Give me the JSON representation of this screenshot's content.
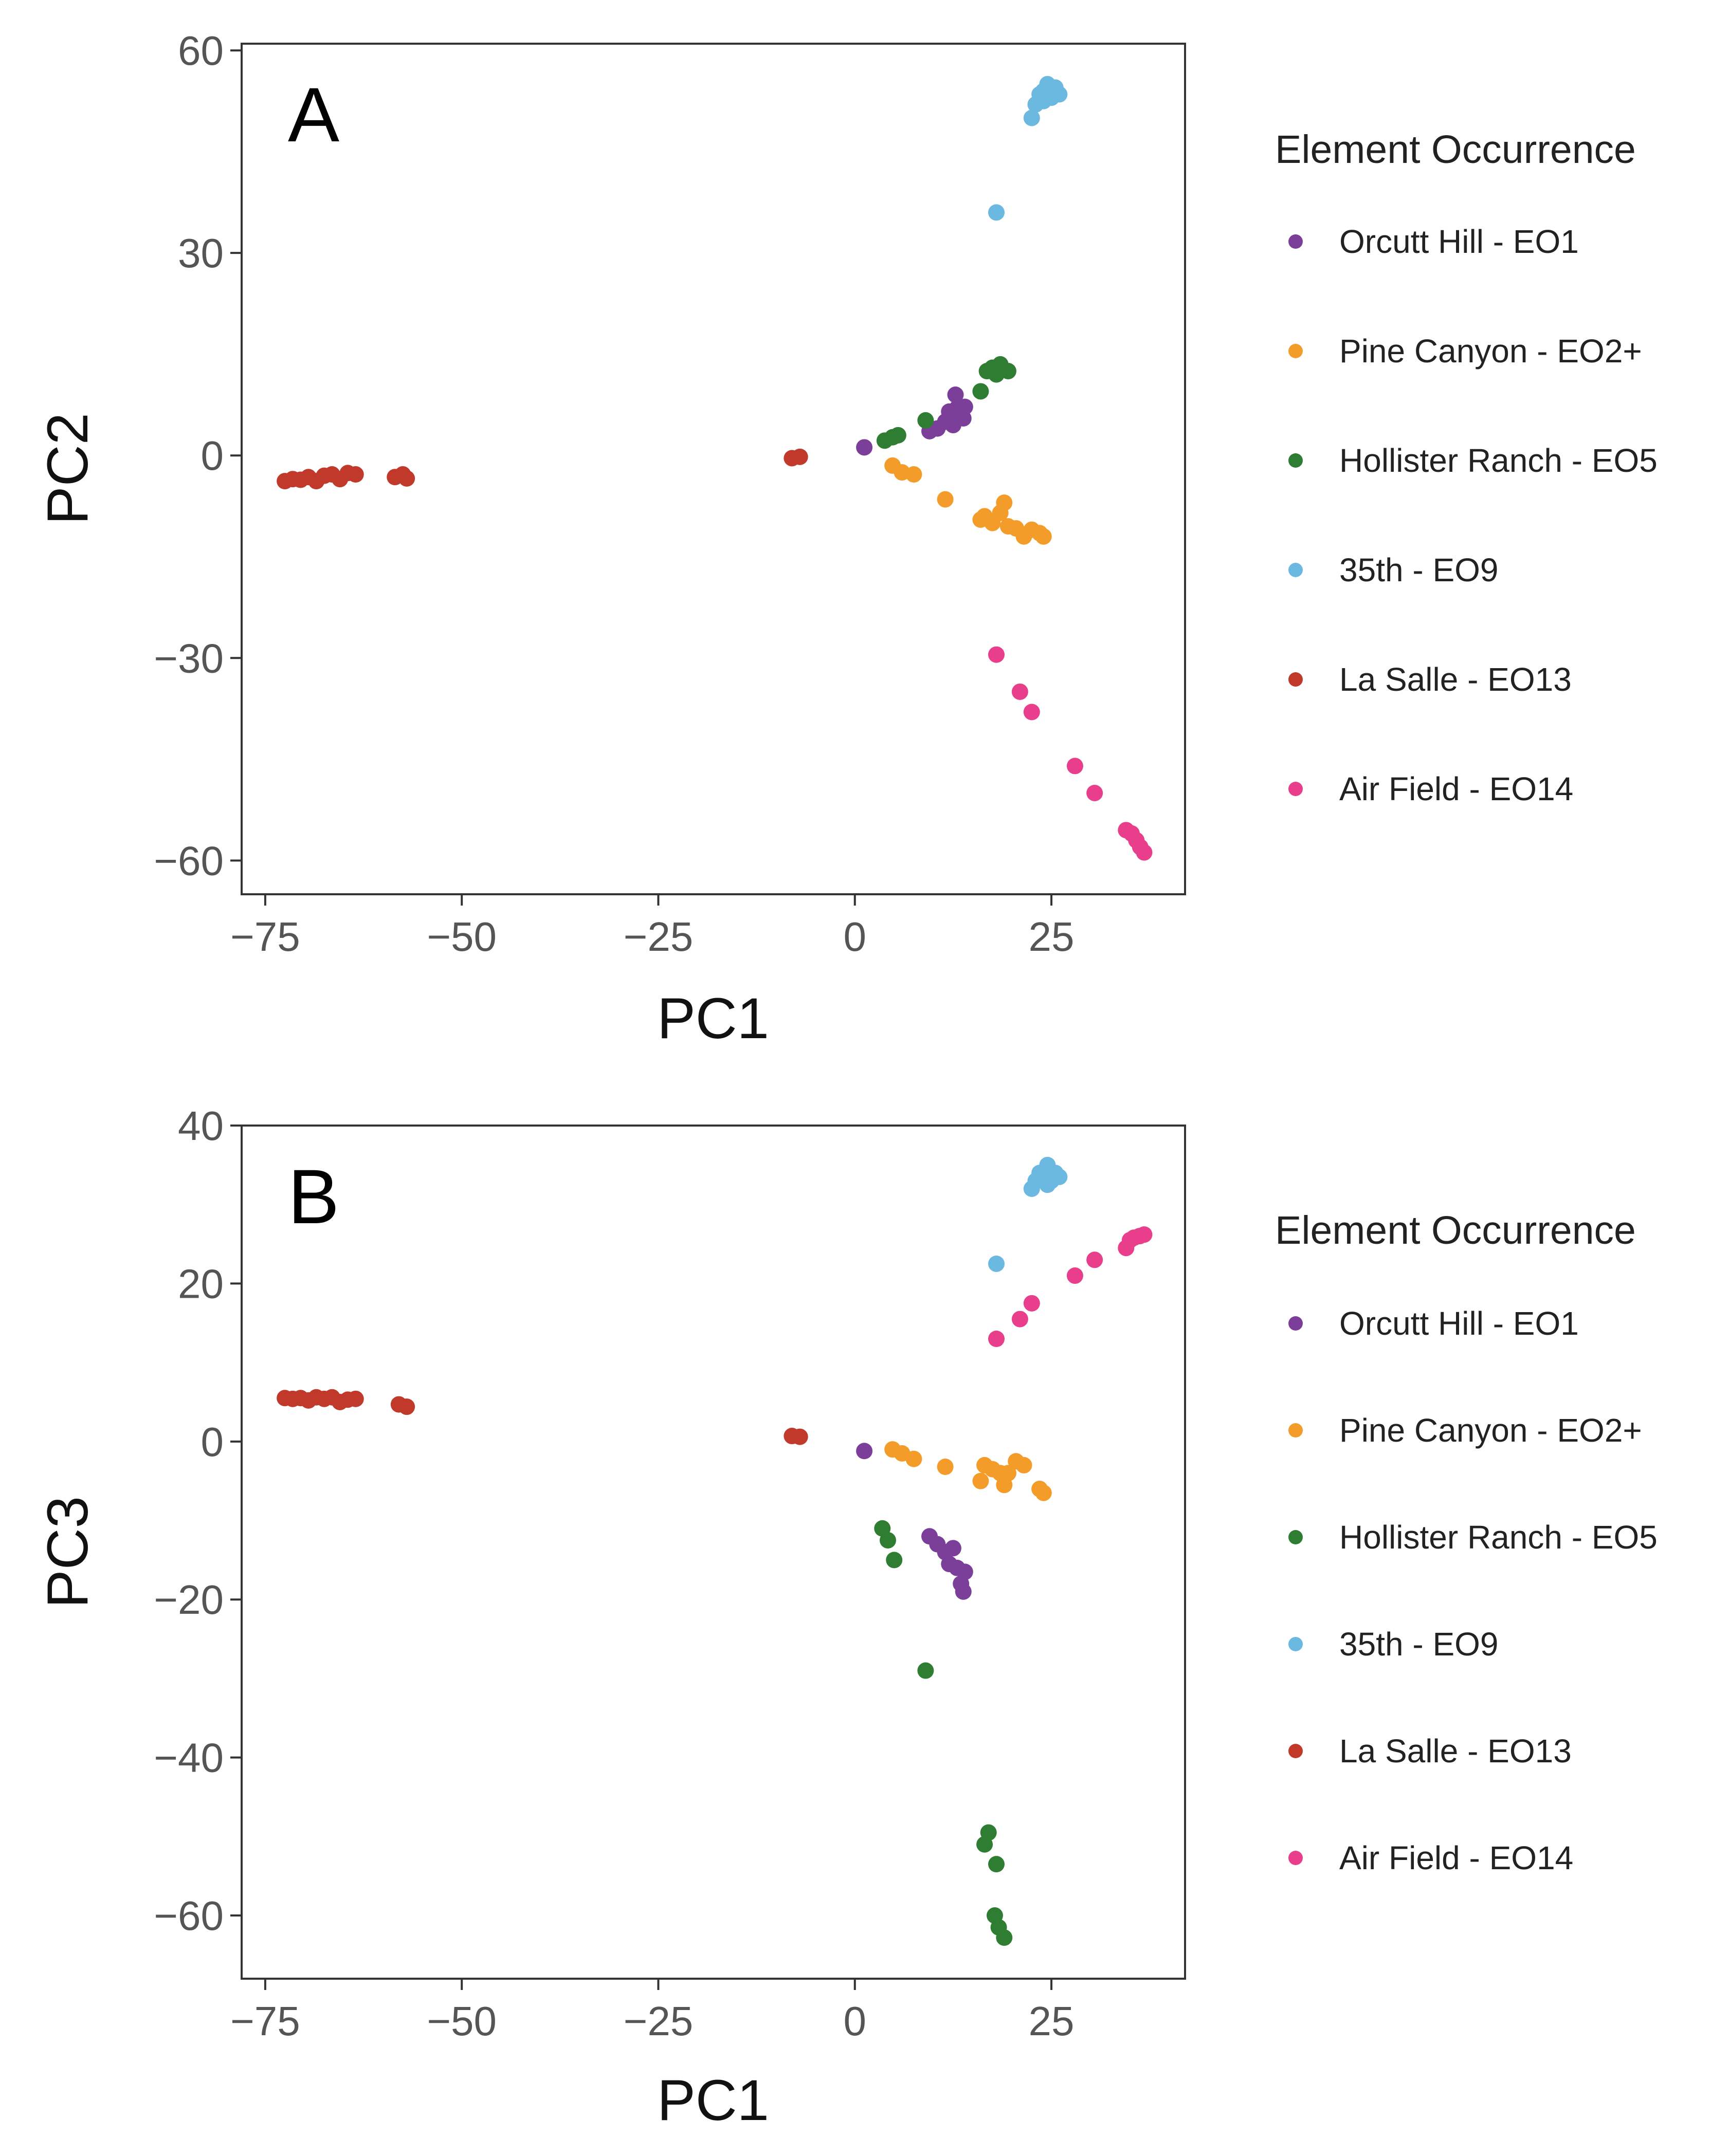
{
  "groups": [
    {
      "key": "eo1",
      "label": "Orcutt Hill - EO1",
      "color": "#7b3f99"
    },
    {
      "key": "eo2",
      "label": "Pine Canyon - EO2+",
      "color": "#f39c2a"
    },
    {
      "key": "eo5",
      "label": "Hollister Ranch - EO5",
      "color": "#2e7d32"
    },
    {
      "key": "eo9",
      "label": "35th - EO9",
      "color": "#6bb8e0"
    },
    {
      "key": "eo13",
      "label": "La Salle - EO13",
      "color": "#c0392b"
    },
    {
      "key": "eo14",
      "label": "Air Field - EO14",
      "color": "#e83e8c"
    }
  ],
  "chart_data": [
    {
      "type": "scatter",
      "panel": "A",
      "xlabel": "PC1",
      "ylabel": "PC2",
      "xlim": [
        -78,
        42
      ],
      "ylim": [
        -65,
        61
      ],
      "xticks": [
        -75,
        -50,
        -25,
        0,
        25
      ],
      "yticks": [
        60,
        30,
        0,
        -30,
        -60
      ],
      "legend_title": "Element Occurrence",
      "legend_position": "right",
      "series": [
        {
          "name": "Orcutt Hill - EO1",
          "points": [
            [
              1.2,
              1.2
            ],
            [
              9.5,
              3.6
            ],
            [
              10.5,
              4.0
            ],
            [
              11.5,
              5.0
            ],
            [
              12.0,
              6.5
            ],
            [
              12.5,
              4.5
            ],
            [
              12.8,
              9.0
            ],
            [
              13.0,
              7.0
            ],
            [
              13.5,
              6.0
            ],
            [
              14.0,
              7.2
            ],
            [
              13.8,
              5.5
            ]
          ]
        },
        {
          "name": "Pine Canyon - EO2+",
          "points": [
            [
              4.8,
              -1.5
            ],
            [
              6.0,
              -2.5
            ],
            [
              7.5,
              -2.8
            ],
            [
              11.5,
              -6.5
            ],
            [
              16.0,
              -9.5
            ],
            [
              16.5,
              -9.0
            ],
            [
              17.5,
              -10.0
            ],
            [
              18.5,
              -8.5
            ],
            [
              19.0,
              -7.0
            ],
            [
              19.5,
              -10.5
            ],
            [
              20.5,
              -10.8
            ],
            [
              21.5,
              -12.0
            ],
            [
              22.5,
              -11.0
            ],
            [
              23.5,
              -11.5
            ],
            [
              24.0,
              -12.0
            ]
          ]
        },
        {
          "name": "Hollister Ranch - EO5",
          "points": [
            [
              3.8,
              2.2
            ],
            [
              4.8,
              2.7
            ],
            [
              5.5,
              3.0
            ],
            [
              9.0,
              5.2
            ],
            [
              16.0,
              9.5
            ],
            [
              16.8,
              12.5
            ],
            [
              17.5,
              13.0
            ],
            [
              18.0,
              12.0
            ],
            [
              18.5,
              13.5
            ],
            [
              19.5,
              12.5
            ]
          ]
        },
        {
          "name": "35th - EO9",
          "points": [
            [
              18.0,
              36.0
            ],
            [
              22.5,
              50.0
            ],
            [
              23.0,
              52.0
            ],
            [
              23.5,
              53.5
            ],
            [
              24.0,
              52.5
            ],
            [
              24.5,
              55.0
            ],
            [
              25.0,
              53.0
            ],
            [
              25.5,
              54.5
            ],
            [
              26.0,
              53.5
            ],
            [
              24.0,
              54.0
            ]
          ]
        },
        {
          "name": "La Salle - EO13",
          "points": [
            [
              -72.5,
              -3.8
            ],
            [
              -71.5,
              -3.5
            ],
            [
              -70.5,
              -3.6
            ],
            [
              -69.5,
              -3.2
            ],
            [
              -68.5,
              -3.8
            ],
            [
              -67.5,
              -3.0
            ],
            [
              -66.5,
              -2.8
            ],
            [
              -65.5,
              -3.5
            ],
            [
              -64.5,
              -2.6
            ],
            [
              -63.5,
              -2.8
            ],
            [
              -58.5,
              -3.2
            ],
            [
              -57.5,
              -2.8
            ],
            [
              -57.0,
              -3.4
            ],
            [
              -8.0,
              -0.4
            ],
            [
              -7.0,
              -0.2
            ]
          ]
        },
        {
          "name": "Air Field - EO14",
          "points": [
            [
              18.0,
              -29.5
            ],
            [
              21.0,
              -35.0
            ],
            [
              22.5,
              -38.0
            ],
            [
              28.0,
              -46.0
            ],
            [
              30.5,
              -50.0
            ],
            [
              34.5,
              -55.5
            ],
            [
              35.2,
              -56.0
            ],
            [
              35.8,
              -57.0
            ],
            [
              36.3,
              -58.0
            ],
            [
              36.8,
              -58.8
            ]
          ]
        }
      ]
    },
    {
      "type": "scatter",
      "panel": "B",
      "xlabel": "PC1",
      "ylabel": "PC3",
      "xlim": [
        -78,
        42
      ],
      "ylim": [
        -68,
        40
      ],
      "xticks": [
        -75,
        -50,
        -25,
        0,
        25
      ],
      "yticks": [
        40,
        20,
        0,
        -20,
        -40,
        -60
      ],
      "legend_title": "Element Occurrence",
      "legend_position": "right",
      "series": [
        {
          "name": "Orcutt Hill - EO1",
          "points": [
            [
              1.2,
              -1.2
            ],
            [
              9.5,
              -12.0
            ],
            [
              10.5,
              -13.0
            ],
            [
              11.5,
              -14.0
            ],
            [
              12.0,
              -15.5
            ],
            [
              12.5,
              -13.5
            ],
            [
              13.0,
              -16.0
            ],
            [
              13.5,
              -18.0
            ],
            [
              13.8,
              -19.0
            ],
            [
              14.0,
              -16.5
            ]
          ]
        },
        {
          "name": "Pine Canyon - EO2+",
          "points": [
            [
              4.8,
              -1.0
            ],
            [
              6.0,
              -1.5
            ],
            [
              7.5,
              -2.2
            ],
            [
              11.5,
              -3.2
            ],
            [
              16.0,
              -5.0
            ],
            [
              16.5,
              -3.0
            ],
            [
              17.5,
              -3.5
            ],
            [
              18.5,
              -4.0
            ],
            [
              19.0,
              -5.5
            ],
            [
              19.5,
              -4.0
            ],
            [
              20.5,
              -2.5
            ],
            [
              21.5,
              -3.0
            ],
            [
              23.5,
              -6.0
            ],
            [
              24.0,
              -6.5
            ]
          ]
        },
        {
          "name": "Hollister Ranch - EO5",
          "points": [
            [
              3.5,
              -11.0
            ],
            [
              4.2,
              -12.5
            ],
            [
              5.0,
              -15.0
            ],
            [
              9.0,
              -29.0
            ],
            [
              16.5,
              -51.0
            ],
            [
              17.0,
              -49.5
            ],
            [
              18.0,
              -53.5
            ],
            [
              17.8,
              -60.0
            ],
            [
              18.3,
              -61.5
            ],
            [
              19.0,
              -62.8
            ]
          ]
        },
        {
          "name": "35th - EO9",
          "points": [
            [
              18.0,
              22.5
            ],
            [
              22.5,
              32.0
            ],
            [
              23.0,
              33.0
            ],
            [
              23.5,
              34.0
            ],
            [
              24.0,
              33.5
            ],
            [
              24.5,
              35.0
            ],
            [
              25.0,
              33.0
            ],
            [
              25.5,
              34.0
            ],
            [
              26.0,
              33.5
            ],
            [
              24.5,
              32.5
            ]
          ]
        },
        {
          "name": "La Salle - EO13",
          "points": [
            [
              -72.5,
              5.5
            ],
            [
              -71.5,
              5.4
            ],
            [
              -70.5,
              5.5
            ],
            [
              -69.5,
              5.2
            ],
            [
              -68.5,
              5.6
            ],
            [
              -67.5,
              5.4
            ],
            [
              -66.5,
              5.6
            ],
            [
              -65.5,
              5.0
            ],
            [
              -64.5,
              5.3
            ],
            [
              -63.5,
              5.4
            ],
            [
              -58.0,
              4.7
            ],
            [
              -57.0,
              4.4
            ],
            [
              -8.0,
              0.7
            ],
            [
              -7.0,
              0.6
            ]
          ]
        },
        {
          "name": "Air Field - EO14",
          "points": [
            [
              18.0,
              13.0
            ],
            [
              21.0,
              15.5
            ],
            [
              22.5,
              17.5
            ],
            [
              28.0,
              21.0
            ],
            [
              30.5,
              23.0
            ],
            [
              34.5,
              24.5
            ],
            [
              35.0,
              25.5
            ],
            [
              35.5,
              25.8
            ],
            [
              36.2,
              26.0
            ],
            [
              36.8,
              26.2
            ]
          ]
        }
      ]
    }
  ]
}
